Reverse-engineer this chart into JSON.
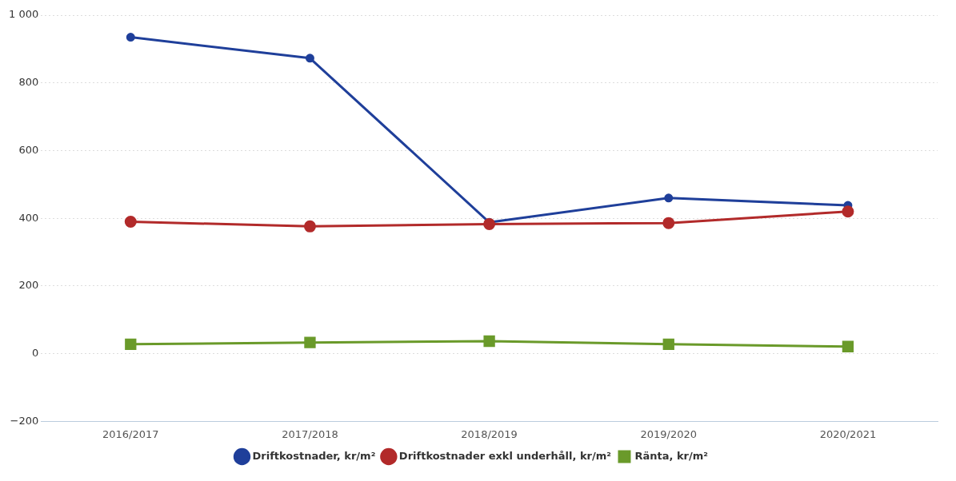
{
  "chart_data": {
    "type": "line",
    "categories": [
      "2016/2017",
      "2017/2018",
      "2018/2019",
      "2019/2020",
      "2020/2021"
    ],
    "series": [
      {
        "name": "Driftkostnader, kr/m²",
        "color": "#1f3f9a",
        "marker": "circle",
        "values": [
          935,
          873,
          388,
          460,
          438
        ]
      },
      {
        "name": "Driftkostnader exkl underhåll, kr/m²",
        "color": "#b22a2a",
        "marker": "circle",
        "values": [
          390,
          376,
          383,
          386,
          420
        ]
      },
      {
        "name": "Ränta, kr/m²",
        "color": "#6a9a2a",
        "marker": "square",
        "values": [
          28,
          33,
          37,
          28,
          21
        ]
      }
    ],
    "ylim": [
      -200,
      1000
    ],
    "yticks": [
      {
        "value": -200,
        "label": "−200"
      },
      0,
      200,
      400,
      600,
      800,
      {
        "value": 1000,
        "label": "1 000"
      }
    ],
    "grid": "y",
    "legend": "bottom",
    "line_style": "solid"
  }
}
